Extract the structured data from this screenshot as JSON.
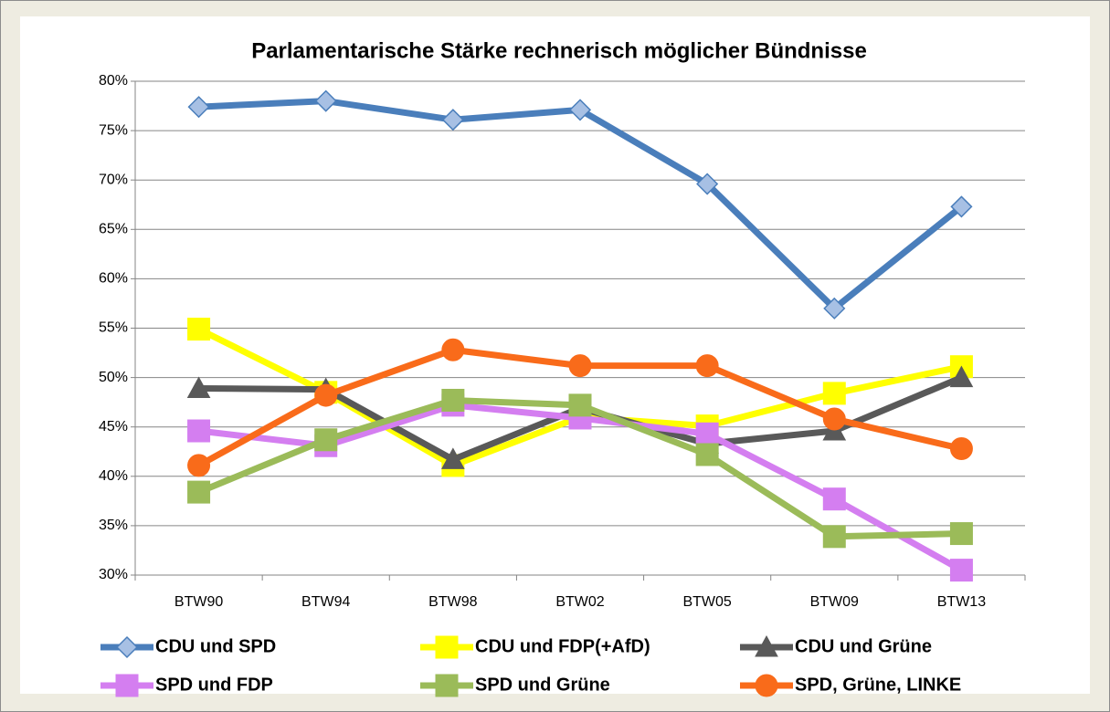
{
  "chart_data": {
    "type": "line",
    "title": "Parlamentarische Stärke rechnerisch möglicher Bündnisse",
    "categories": [
      "BTW90",
      "BTW94",
      "BTW98",
      "BTW02",
      "BTW05",
      "BTW09",
      "BTW13"
    ],
    "series": [
      {
        "name": "CDU und SPD",
        "color": "#4a7ebb",
        "marker": "diamond",
        "values": [
          77.4,
          78.0,
          76.1,
          77.1,
          69.6,
          57.0,
          67.3
        ]
      },
      {
        "name": "CDU und FDP(+AfD)",
        "color": "#ffff00",
        "marker": "square",
        "values": [
          54.9,
          48.5,
          41.1,
          46.0,
          45.1,
          48.4,
          51.1
        ]
      },
      {
        "name": "CDU und Grüne",
        "color": "#595959",
        "marker": "triangle",
        "values": [
          48.9,
          48.8,
          41.7,
          46.9,
          43.3,
          44.6,
          50.0
        ]
      },
      {
        "name": "SPD und FDP",
        "color": "#d47ef0",
        "marker": "square",
        "values": [
          44.6,
          43.1,
          47.2,
          45.9,
          44.3,
          37.7,
          30.5
        ]
      },
      {
        "name": "SPD und Grüne",
        "color": "#9bbb59",
        "marker": "square",
        "values": [
          38.4,
          43.7,
          47.7,
          47.2,
          42.2,
          33.9,
          34.2
        ]
      },
      {
        "name": "SPD, Grüne, LINKE",
        "color": "#f96b1a",
        "marker": "circle",
        "values": [
          41.1,
          48.2,
          52.8,
          51.2,
          51.2,
          45.8,
          42.8
        ]
      }
    ],
    "ylim": [
      30,
      80
    ],
    "yticks": [
      {
        "value": 30,
        "label": "30%"
      },
      {
        "value": 35,
        "label": "35%"
      },
      {
        "value": 40,
        "label": "40%"
      },
      {
        "value": 45,
        "label": "45%"
      },
      {
        "value": 50,
        "label": "50%"
      },
      {
        "value": 55,
        "label": "55%"
      },
      {
        "value": 60,
        "label": "60%"
      },
      {
        "value": 65,
        "label": "65%"
      },
      {
        "value": 70,
        "label": "70%"
      },
      {
        "value": 75,
        "label": "75%"
      },
      {
        "value": 80,
        "label": "80%"
      }
    ],
    "grid": true,
    "legend": "bottom"
  }
}
